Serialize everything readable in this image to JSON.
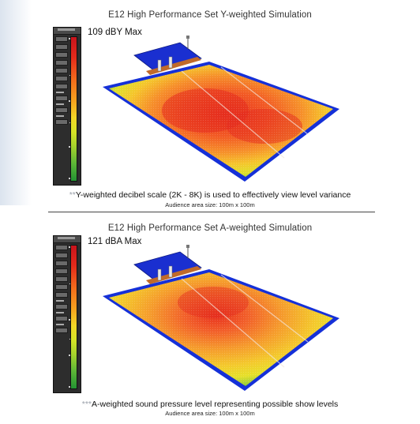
{
  "colors": {
    "scale_top": "#c8141c",
    "scale_mid": "#f3d726",
    "scale_bottom": "#239333",
    "floor_edge": "#1530d8",
    "stage": "#c06a2a"
  },
  "panels": [
    {
      "title": "E12 High Performance Set Y-weighted Simulation",
      "max_level": "109 dBY Max",
      "caption_marker": "**",
      "caption": "Y-weighted decibel scale (2K - 8K) is used to effectively view level variance",
      "area_size": "Audience area size: 100m x 100m"
    },
    {
      "title": "E12 High Performance Set A-weighted Simulation",
      "max_level": "121 dBA Max",
      "caption_marker": "***",
      "caption": "A-weighted sound pressure level representing possible show levels",
      "area_size": "Audience area size: 100m x 100m"
    }
  ]
}
